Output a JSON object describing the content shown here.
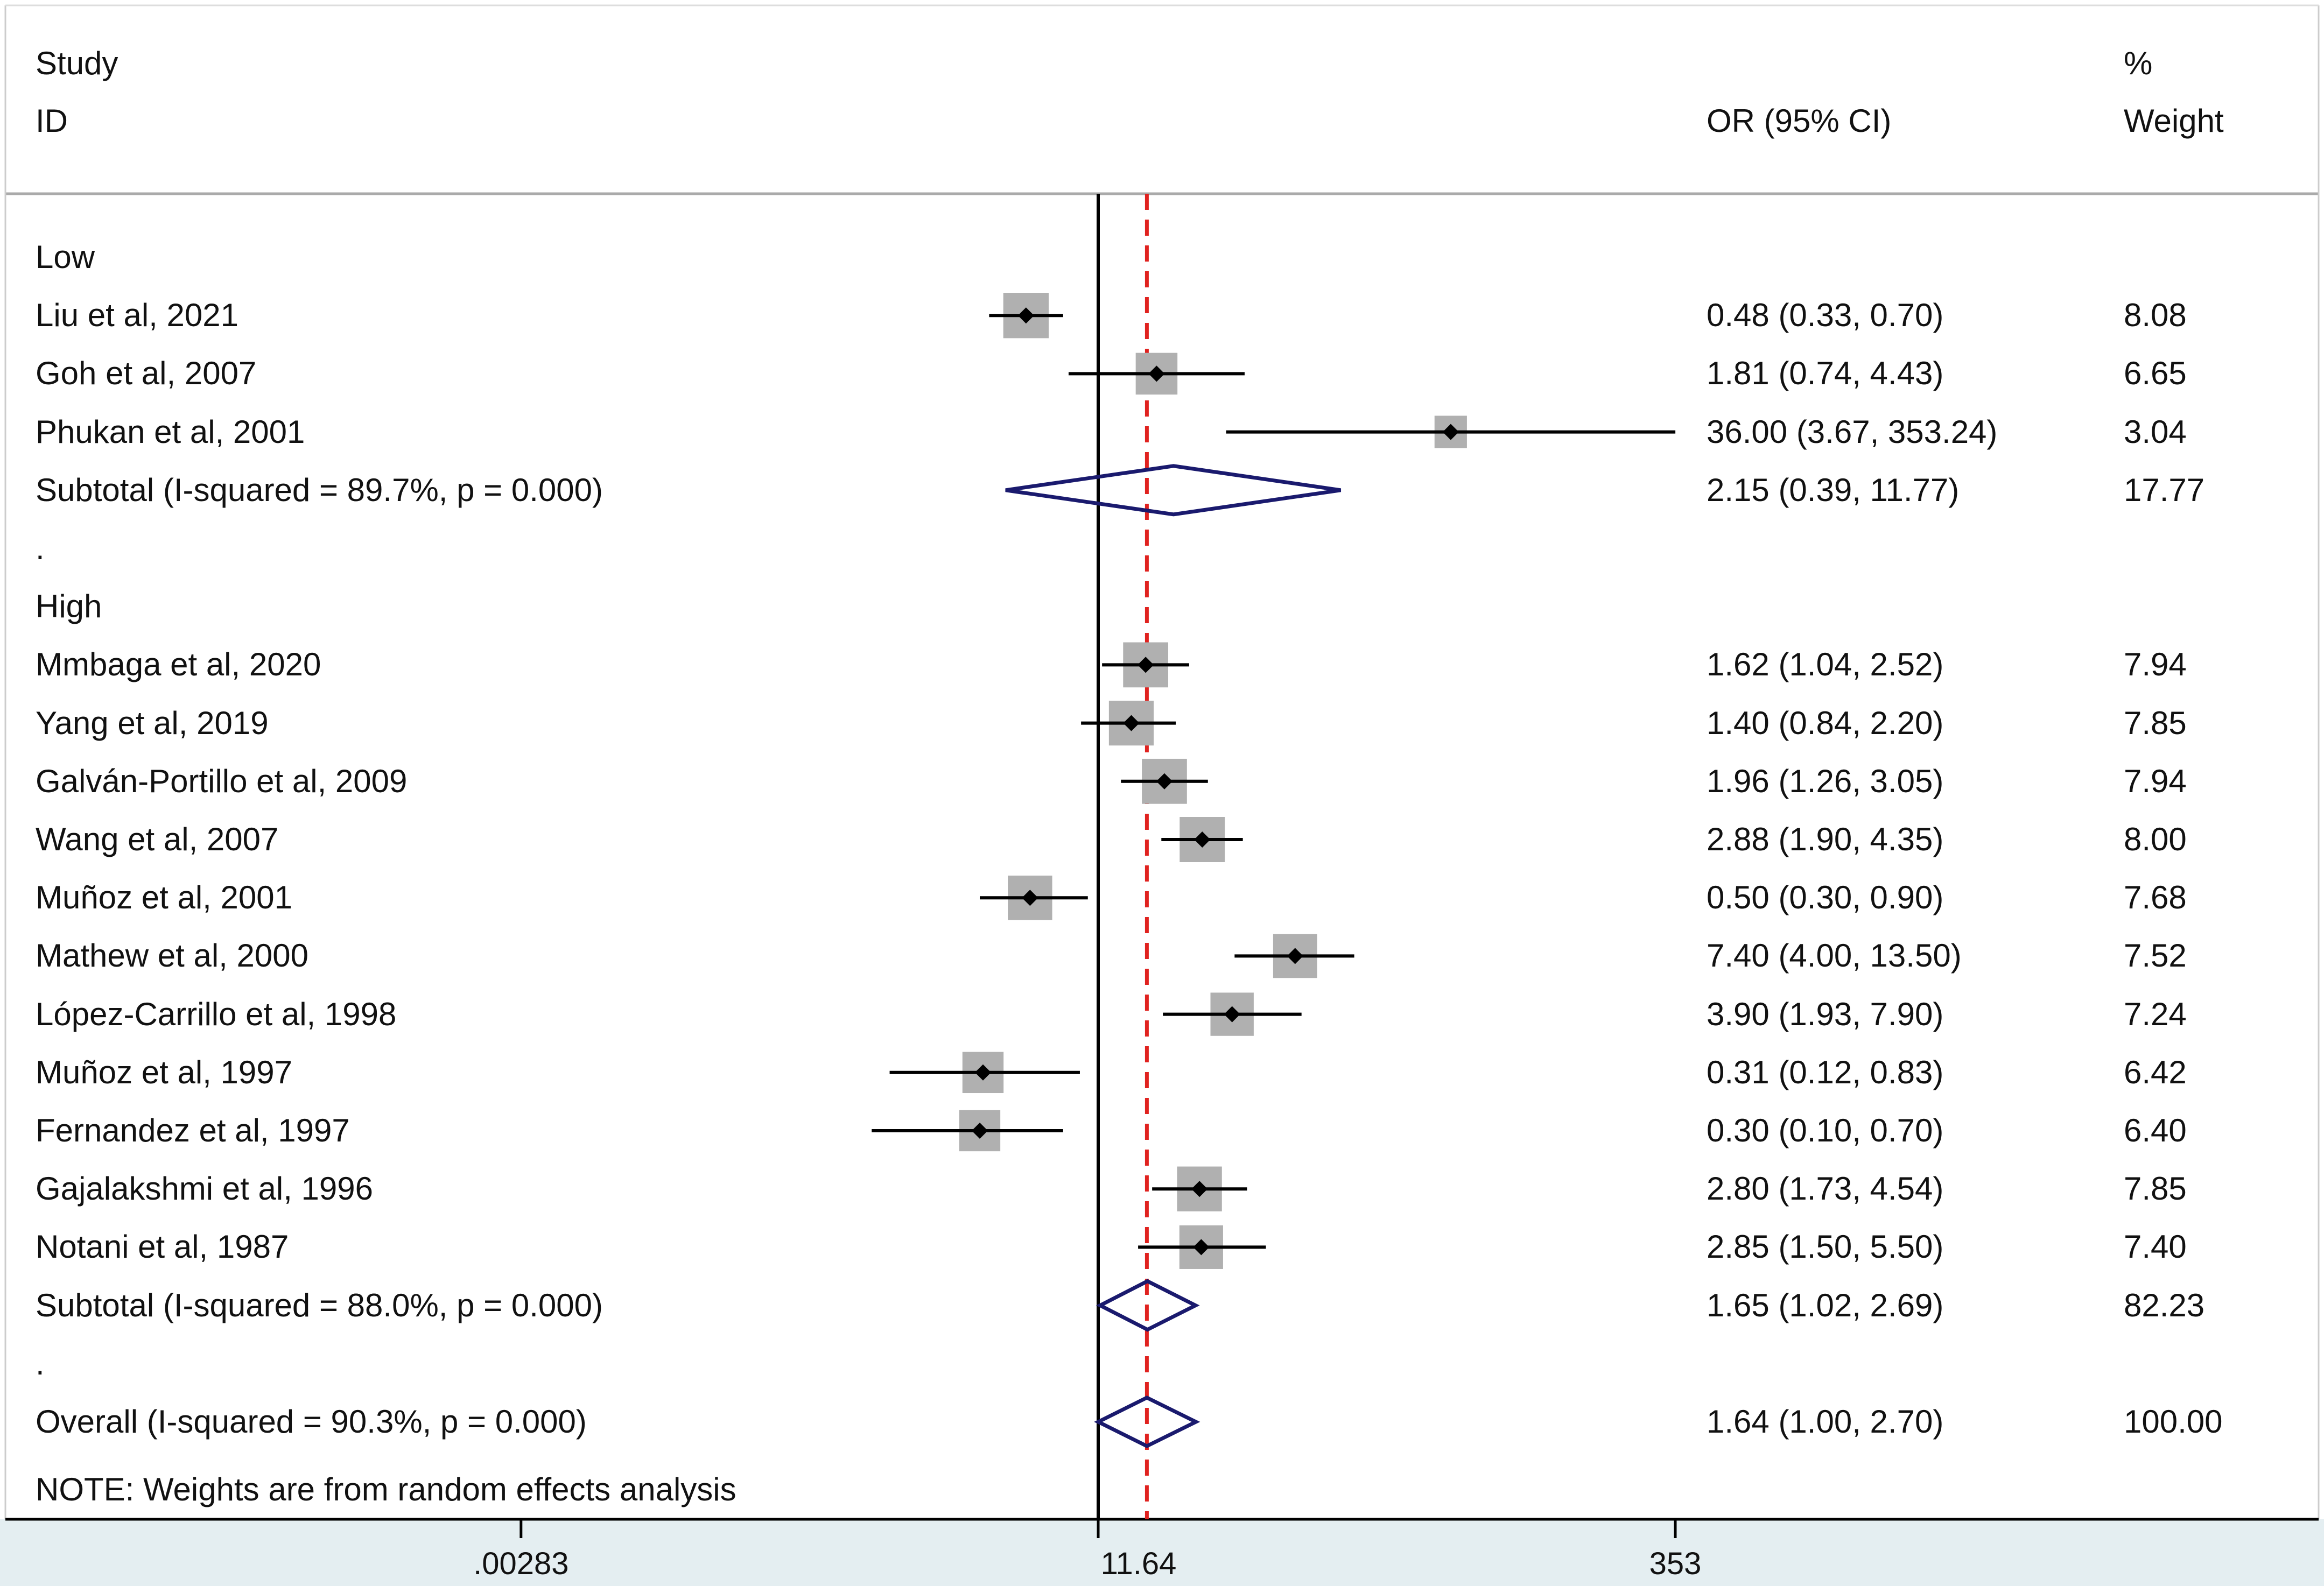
{
  "header": {
    "study": "Study",
    "id": "ID",
    "or_ci": "OR (95% CI)",
    "percent": "%",
    "weight": "Weight"
  },
  "note": "NOTE: Weights are from random effects analysis",
  "colors": {
    "point": "#000000",
    "box": "#b0b0b0",
    "diamond": "#1a1a6e",
    "reference_line": "#e0221f",
    "null_line": "#000000",
    "axis_band": "#e4eef1"
  },
  "chart_data": {
    "type": "forest",
    "measure": "OR",
    "x_scale": "log",
    "axis_ticks": [
      {
        "value": 0.00283,
        "label": ".00283"
      },
      {
        "value": 1,
        "label": ""
      },
      {
        "value": 353,
        "label": "353"
      }
    ],
    "axis_center_label": {
      "value": 1,
      "label": "11.64"
    },
    "null_value": 1,
    "overall_line_value": 1.64,
    "rows": [
      {
        "type": "group",
        "label": "Low"
      },
      {
        "type": "study",
        "label": "Liu et al, 2021",
        "or": 0.48,
        "lo": 0.33,
        "hi": 0.7,
        "ci_text": "0.48 (0.33, 0.70)",
        "weight": "8.08"
      },
      {
        "type": "study",
        "label": "Goh et al, 2007",
        "or": 1.81,
        "lo": 0.74,
        "hi": 4.43,
        "ci_text": "1.81 (0.74, 4.43)",
        "weight": "6.65"
      },
      {
        "type": "study",
        "label": "Phukan et al, 2001",
        "or": 36.0,
        "lo": 3.67,
        "hi": 353.24,
        "ci_text": "36.00 (3.67, 353.24)",
        "weight": "3.04"
      },
      {
        "type": "subtotal",
        "label": "Subtotal  (I-squared = 89.7%, p = 0.000)",
        "or": 2.15,
        "lo": 0.39,
        "hi": 11.77,
        "ci_text": "2.15 (0.39, 11.77)",
        "weight": "17.77"
      },
      {
        "type": "spacer",
        "label": "."
      },
      {
        "type": "group",
        "label": "High"
      },
      {
        "type": "study",
        "label": "Mmbaga et al, 2020",
        "or": 1.62,
        "lo": 1.04,
        "hi": 2.52,
        "ci_text": "1.62 (1.04, 2.52)",
        "weight": "7.94"
      },
      {
        "type": "study",
        "label": "Yang et al, 2019",
        "or": 1.4,
        "lo": 0.84,
        "hi": 2.2,
        "ci_text": "1.40 (0.84, 2.20)",
        "weight": "7.85"
      },
      {
        "type": "study",
        "label": "Galván-Portillo et al, 2009",
        "or": 1.96,
        "lo": 1.26,
        "hi": 3.05,
        "ci_text": "1.96 (1.26, 3.05)",
        "weight": "7.94"
      },
      {
        "type": "study",
        "label": "Wang et al, 2007",
        "or": 2.88,
        "lo": 1.9,
        "hi": 4.35,
        "ci_text": "2.88 (1.90, 4.35)",
        "weight": "8.00"
      },
      {
        "type": "study",
        "label": "Muñoz et al, 2001",
        "or": 0.5,
        "lo": 0.3,
        "hi": 0.9,
        "ci_text": "0.50 (0.30, 0.90)",
        "weight": "7.68"
      },
      {
        "type": "study",
        "label": "Mathew et al, 2000",
        "or": 7.4,
        "lo": 4.0,
        "hi": 13.5,
        "ci_text": "7.40 (4.00, 13.50)",
        "weight": "7.52"
      },
      {
        "type": "study",
        "label": "López-Carrillo et al, 1998",
        "or": 3.9,
        "lo": 1.93,
        "hi": 7.9,
        "ci_text": "3.90 (1.93, 7.90)",
        "weight": "7.24"
      },
      {
        "type": "study",
        "label": "Muñoz et al, 1997",
        "or": 0.31,
        "lo": 0.12,
        "hi": 0.83,
        "ci_text": "0.31 (0.12, 0.83)",
        "weight": "6.42"
      },
      {
        "type": "study",
        "label": "Fernandez et al, 1997",
        "or": 0.3,
        "lo": 0.1,
        "hi": 0.7,
        "ci_text": "0.30 (0.10, 0.70)",
        "weight": "6.40"
      },
      {
        "type": "study",
        "label": "Gajalakshmi et al, 1996",
        "or": 2.8,
        "lo": 1.73,
        "hi": 4.54,
        "ci_text": "2.80 (1.73, 4.54)",
        "weight": "7.85"
      },
      {
        "type": "study",
        "label": "Notani et al, 1987",
        "or": 2.85,
        "lo": 1.5,
        "hi": 5.5,
        "ci_text": "2.85 (1.50, 5.50)",
        "weight": "7.40"
      },
      {
        "type": "subtotal",
        "label": "Subtotal  (I-squared = 88.0%, p = 0.000)",
        "or": 1.65,
        "lo": 1.02,
        "hi": 2.69,
        "ci_text": "1.65 (1.02, 2.69)",
        "weight": "82.23"
      },
      {
        "type": "spacer",
        "label": "."
      },
      {
        "type": "overall",
        "label": "Overall  (I-squared = 90.3%, p = 0.000)",
        "or": 1.64,
        "lo": 1.0,
        "hi": 2.7,
        "ci_text": "1.64 (1.00, 2.70)",
        "weight": "100.00"
      }
    ]
  }
}
